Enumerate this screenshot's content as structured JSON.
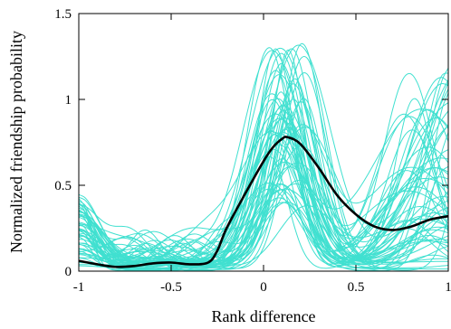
{
  "chart_data": {
    "type": "line",
    "title": "",
    "xlabel": "Rank difference",
    "ylabel": "Normalized friendship probability",
    "xlim": [
      -1,
      1
    ],
    "ylim": [
      0,
      1.5
    ],
    "xticks": [
      -1,
      -0.5,
      0,
      0.5,
      1
    ],
    "xtick_labels": [
      "-1",
      "-0.5",
      "0",
      "0.5",
      "1"
    ],
    "yticks": [
      0,
      0.5,
      1,
      1.5
    ],
    "ytick_labels": [
      "0",
      "0.5",
      "1",
      "1.5"
    ],
    "grid": false,
    "legend": "none",
    "colors": {
      "individual": "#40e0d0",
      "mean": "#000000"
    },
    "mean_series": {
      "x": [
        -1,
        -0.9,
        -0.8,
        -0.7,
        -0.6,
        -0.5,
        -0.4,
        -0.3,
        -0.25,
        -0.2,
        -0.1,
        0,
        0.05,
        0.1,
        0.13,
        0.2,
        0.3,
        0.4,
        0.5,
        0.6,
        0.7,
        0.8,
        0.9,
        1
      ],
      "y": [
        0.06,
        0.04,
        0.025,
        0.03,
        0.045,
        0.05,
        0.04,
        0.05,
        0.12,
        0.25,
        0.45,
        0.64,
        0.72,
        0.77,
        0.78,
        0.74,
        0.6,
        0.44,
        0.33,
        0.26,
        0.24,
        0.26,
        0.3,
        0.32
      ]
    },
    "individual_series_count": 60
  }
}
